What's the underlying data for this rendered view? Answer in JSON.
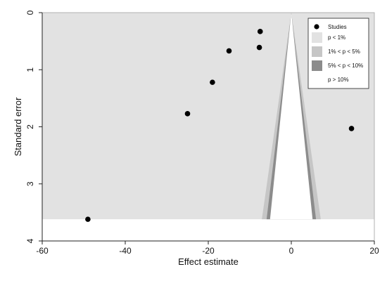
{
  "chart_data": {
    "type": "scatter",
    "title": "",
    "xlabel": "Effect estimate",
    "ylabel": "Standard error",
    "xlim": [
      -60,
      20
    ],
    "ylim": [
      0,
      4
    ],
    "y_inverted": true,
    "grid": false,
    "legend_position": "top-right",
    "x_ticks": [
      "-60",
      "-40",
      "-20",
      "0",
      "20"
    ],
    "y_ticks": [
      "0",
      "1",
      "2",
      "3",
      "4"
    ],
    "points": [
      {
        "x": -7.5,
        "y": 0.33
      },
      {
        "x": -7.7,
        "y": 0.61
      },
      {
        "x": -15.0,
        "y": 0.67
      },
      {
        "x": -19.0,
        "y": 1.22
      },
      {
        "x": -25.0,
        "y": 1.77
      },
      {
        "x": 14.5,
        "y": 2.03
      },
      {
        "x": -49.0,
        "y": 3.62
      }
    ],
    "contour_max_se": 3.62,
    "contours": [
      {
        "label": "p < 1%",
        "z": 2.576,
        "color": "#e2e2e2"
      },
      {
        "label": "1% < p < 5%",
        "z": 1.96,
        "color": "#c6c6c6"
      },
      {
        "label": "5% < p < 10%",
        "z": 1.645,
        "color": "#8c8c8c"
      },
      {
        "label": "p > 10%",
        "color": "#ffffff"
      }
    ],
    "legend": {
      "studies_label": "Studies",
      "entries": [
        "p < 1%",
        "1% < p < 5%",
        "5% < p < 10%",
        "p > 10%"
      ]
    },
    "colors": {
      "points": "#000000",
      "axis": "#222222",
      "frame": "#b0b0b0"
    }
  }
}
